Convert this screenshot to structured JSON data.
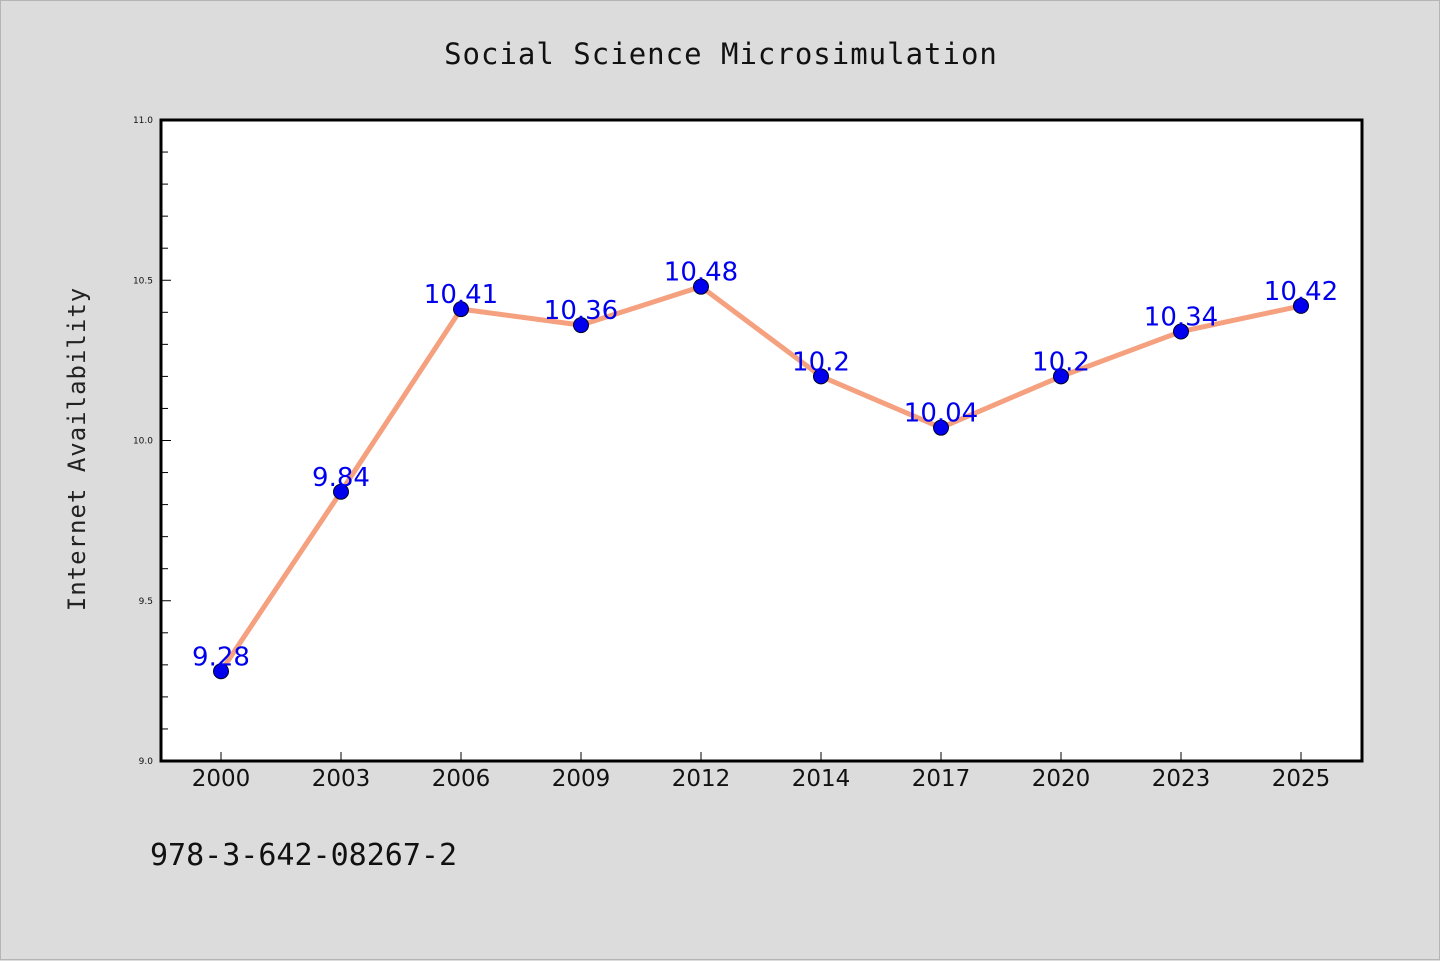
{
  "colors": {
    "background": "#dcdcdc",
    "plot_background": "#ffffff",
    "line": "#f5a07e",
    "marker": "#0000ee",
    "data_label": "#0000ee"
  },
  "footer": {
    "isbn": "978-3-642-08267-2"
  },
  "chart_data": {
    "type": "line",
    "title": "Social Science Microsimulation",
    "xlabel": "",
    "ylabel": "Internet Availability",
    "categories": [
      "2000",
      "2003",
      "2006",
      "2009",
      "2012",
      "2014",
      "2017",
      "2020",
      "2023",
      "2025"
    ],
    "series": [
      {
        "values": [
          9.28,
          9.84,
          10.41,
          10.36,
          10.48,
          10.2,
          10.04,
          10.2,
          10.34,
          10.42
        ],
        "labels": [
          "9.28",
          "9.84",
          "10.41",
          "10.36",
          "10.48",
          "10.2",
          "10.04",
          "10.2",
          "10.34",
          "10.42"
        ]
      }
    ],
    "ylim": [
      9.0,
      11.0
    ],
    "yticks": [
      "9.0",
      "9.5",
      "10.0",
      "10.5",
      "11.0"
    ],
    "grid": false,
    "legend": "none"
  }
}
